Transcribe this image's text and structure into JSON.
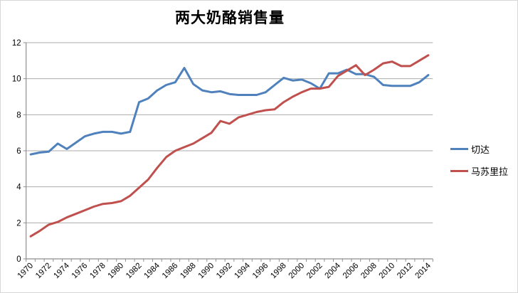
{
  "title": "两大奶酪销售量",
  "colors": {
    "cheddar": "#4F81BD",
    "mozzarella": "#C0504D",
    "gridline": "#ABABAB",
    "axis": "#8E8E8E",
    "tick_text": "#000000",
    "border": "#D6D6D6"
  },
  "legend": {
    "items": [
      {
        "label": "切达",
        "color": "#4F81BD"
      },
      {
        "label": "马苏里拉",
        "color": "#C0504D"
      }
    ]
  },
  "chart_data": {
    "type": "line",
    "title": "两大奶酪销售量",
    "x": [
      1970,
      1971,
      1972,
      1973,
      1974,
      1975,
      1976,
      1977,
      1978,
      1979,
      1980,
      1981,
      1982,
      1983,
      1984,
      1985,
      1986,
      1987,
      1988,
      1989,
      1990,
      1991,
      1992,
      1993,
      1994,
      1995,
      1996,
      1997,
      1998,
      1999,
      2000,
      2001,
      2002,
      2003,
      2004,
      2005,
      2006,
      2007,
      2008,
      2009,
      2010,
      2011,
      2012,
      2013,
      2014
    ],
    "x_tick_labels": [
      "1970",
      "1972",
      "1974",
      "1976",
      "1978",
      "1980",
      "1982",
      "1984",
      "1986",
      "1988",
      "1990",
      "1992",
      "1994",
      "1996",
      "1998",
      "2000",
      "2002",
      "2004",
      "2006",
      "2008",
      "2010",
      "2012",
      "2014"
    ],
    "series": [
      {
        "name": "切达",
        "color": "#4F81BD",
        "values": [
          5.8,
          5.9,
          5.95,
          6.4,
          6.1,
          6.45,
          6.8,
          6.95,
          7.05,
          7.05,
          6.95,
          7.05,
          8.7,
          8.9,
          9.35,
          9.65,
          9.8,
          10.6,
          9.7,
          9.35,
          9.25,
          9.3,
          9.15,
          9.1,
          9.1,
          9.1,
          9.25,
          9.65,
          10.05,
          9.9,
          9.95,
          9.75,
          9.45,
          10.3,
          10.3,
          10.5,
          10.25,
          10.25,
          10.1,
          9.65,
          9.6,
          9.6,
          9.6,
          9.8,
          10.2
        ]
      },
      {
        "name": "马苏里拉",
        "color": "#C0504D",
        "values": [
          1.25,
          1.55,
          1.9,
          2.05,
          2.3,
          2.5,
          2.7,
          2.9,
          3.05,
          3.1,
          3.2,
          3.5,
          3.95,
          4.4,
          5.05,
          5.65,
          6.0,
          6.2,
          6.4,
          6.7,
          7.0,
          7.65,
          7.5,
          7.85,
          8.0,
          8.15,
          8.25,
          8.3,
          8.7,
          9.0,
          9.25,
          9.45,
          9.45,
          9.55,
          10.15,
          10.45,
          10.75,
          10.2,
          10.5,
          10.85,
          10.95,
          10.7,
          10.7,
          11.0,
          11.3
        ]
      }
    ],
    "ylim": [
      0,
      12
    ],
    "y_ticks": [
      0,
      2,
      4,
      6,
      8,
      10,
      12
    ],
    "grid": "horizontal",
    "legend_position": "right",
    "xlabel": "",
    "ylabel": ""
  }
}
